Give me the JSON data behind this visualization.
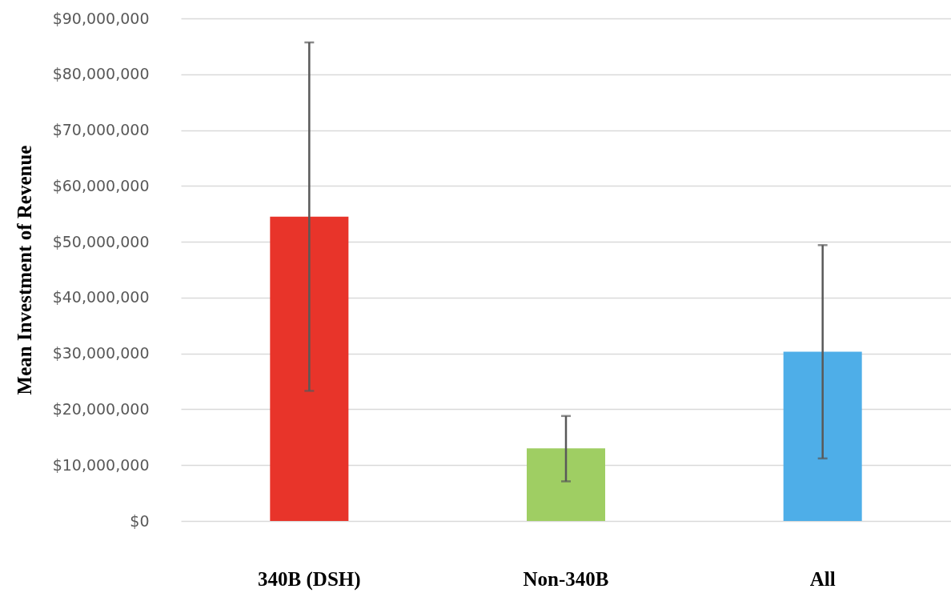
{
  "chart_data": {
    "type": "bar",
    "ylabel": "Mean Investment of Revenue",
    "categories": [
      "340B (DSH)",
      "Non-340B",
      "All"
    ],
    "values": [
      54500000,
      13000000,
      30300000
    ],
    "colors": [
      "#e8342a",
      "#9fce63",
      "#4eaee8"
    ],
    "errors": [
      [
        23300000,
        85700000
      ],
      [
        7100000,
        18800000
      ],
      [
        11200000,
        49400000
      ]
    ],
    "ylim": [
      0,
      90000000
    ],
    "yticks": [
      {
        "value": 0,
        "label": "$0"
      },
      {
        "value": 10000000,
        "label": "$10,000,000"
      },
      {
        "value": 20000000,
        "label": "$20,000,000"
      },
      {
        "value": 30000000,
        "label": "$30,000,000"
      },
      {
        "value": 40000000,
        "label": "$40,000,000"
      },
      {
        "value": 50000000,
        "label": "$50,000,000"
      },
      {
        "value": 60000000,
        "label": "$60,000,000"
      },
      {
        "value": 70000000,
        "label": "$70,000,000"
      },
      {
        "value": 80000000,
        "label": "$80,000,000"
      },
      {
        "value": 90000000,
        "label": "$90,000,000"
      }
    ],
    "grid": "y",
    "legend": false
  }
}
